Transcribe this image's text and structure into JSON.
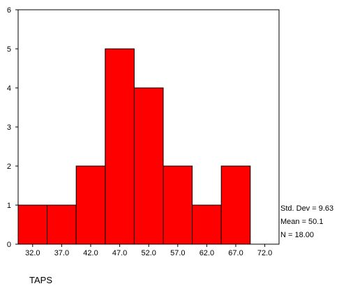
{
  "chart_data": {
    "type": "bar",
    "title": "",
    "xlabel": "TAPS",
    "ylabel": "",
    "bins": [
      {
        "center": 32.0,
        "label": "32.0",
        "count": 1
      },
      {
        "center": 37.0,
        "label": "37.0",
        "count": 1
      },
      {
        "center": 42.0,
        "label": "42.0",
        "count": 2
      },
      {
        "center": 47.0,
        "label": "47.0",
        "count": 5
      },
      {
        "center": 52.0,
        "label": "52.0",
        "count": 4
      },
      {
        "center": 57.0,
        "label": "57.0",
        "count": 2
      },
      {
        "center": 62.0,
        "label": "62.0",
        "count": 1
      },
      {
        "center": 67.0,
        "label": "67.0",
        "count": 2
      },
      {
        "center": 72.0,
        "label": "72.0",
        "count": 0
      }
    ],
    "bin_width": 5.0,
    "ylim": [
      0,
      6
    ],
    "yticks": [
      0,
      1,
      2,
      3,
      4,
      5,
      6
    ],
    "bar_color": "#ff0000",
    "edge_color": "#000000",
    "grid": false,
    "stats": {
      "std_dev": "Std. Dev = 9.63",
      "mean": "Mean = 50.1",
      "n": "N = 18.00"
    }
  }
}
